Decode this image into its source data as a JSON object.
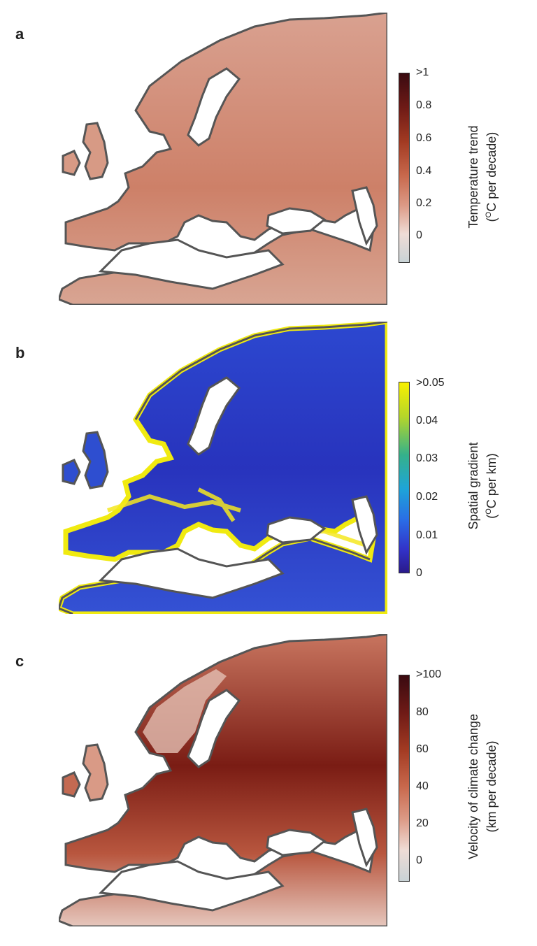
{
  "panels": [
    {
      "letter": "a",
      "colorbar": {
        "ticks": [
          ">1",
          "0.8",
          "0.6",
          "0.4",
          "0.2",
          "0"
        ],
        "title_line1": "Temperature trend",
        "title_line2_pre": "(",
        "title_line2_sup": "O",
        "title_line2_post": "C per decade)",
        "colors": [
          "#3a0a10",
          "#6e1a16",
          "#a23a22",
          "#c8684c",
          "#dc9a86",
          "#efdcd6",
          "#c9d3d6"
        ]
      },
      "map_fill": "#cf8a72"
    },
    {
      "letter": "b",
      "colorbar": {
        "ticks": [
          ">0.05",
          "0.04",
          "0.03",
          "0.02",
          "0.01",
          "0"
        ],
        "title_line1": "Spatial gradient",
        "title_line2_pre": "(",
        "title_line2_sup": "O",
        "title_line2_post": "C per km)",
        "colors": [
          "#f8f000",
          "#b5d62a",
          "#35b18a",
          "#1ea4d8",
          "#2a6ee6",
          "#3232c8",
          "#2a1a8a"
        ]
      },
      "map_fill": "#2a3ec8"
    },
    {
      "letter": "c",
      "colorbar": {
        "ticks": [
          ">100",
          "80",
          "60",
          "40",
          "20",
          "0"
        ],
        "title_line1": "Velocity of climate change",
        "title_line2_pre": "(km per decade)",
        "title_line2_sup": "",
        "title_line2_post": "",
        "colors": [
          "#3a0a10",
          "#6e1a16",
          "#a23a22",
          "#c8684c",
          "#dc9a86",
          "#efdcd6",
          "#c9d3d6"
        ]
      },
      "map_fill": "#b4553e"
    }
  ]
}
